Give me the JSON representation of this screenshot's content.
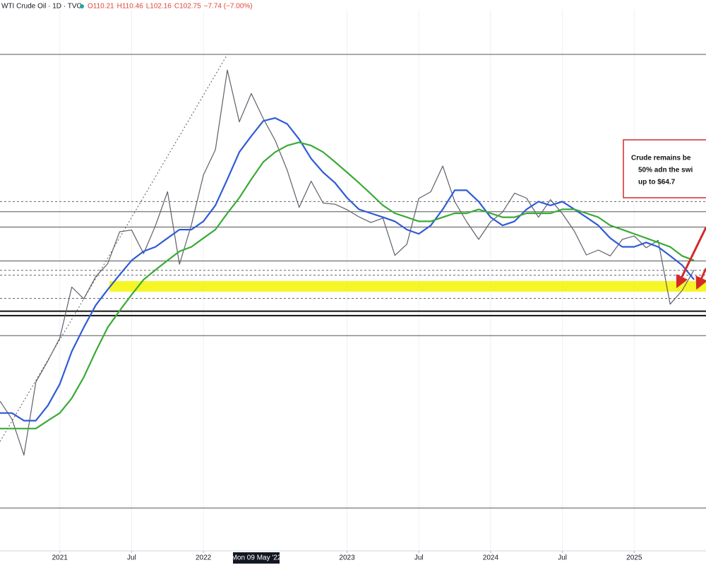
{
  "chart_data": {
    "type": "line",
    "title": "WTI Crude Oil · 1D · TVC",
    "ohlc": [
      "O110.21",
      "H110.46",
      "L102.16",
      "C102.75",
      "−7.74 (−7.00%)"
    ],
    "crosshair_label": "Mon 09 May '22",
    "log_scale": true,
    "ylim": [
      26.3,
      155
    ],
    "xlim": [
      "2020-08",
      "2025-07"
    ],
    "xticks": [
      {
        "value": "2021-01",
        "label": "2021"
      },
      {
        "value": "2021-07",
        "label": "Jul"
      },
      {
        "value": "2022-01",
        "label": "2022"
      },
      {
        "value": "2023-01",
        "label": "2023"
      },
      {
        "value": "2023-07",
        "label": "Jul"
      },
      {
        "value": "2024-01",
        "label": "2024"
      },
      {
        "value": "2024-07",
        "label": "Jul"
      },
      {
        "value": "2025-01",
        "label": "2025"
      }
    ],
    "grid": true,
    "x": [
      "2020-08",
      "2020-09",
      "2020-10",
      "2020-11",
      "2020-12",
      "2021-01",
      "2021-02",
      "2021-03",
      "2021-04",
      "2021-05",
      "2021-06",
      "2021-07",
      "2021-08",
      "2021-09",
      "2021-10",
      "2021-11",
      "2021-12",
      "2022-01",
      "2022-02",
      "2022-03",
      "2022-04",
      "2022-05",
      "2022-06",
      "2022-07",
      "2022-08",
      "2022-09",
      "2022-10",
      "2022-11",
      "2022-12",
      "2023-01",
      "2023-02",
      "2023-03",
      "2023-04",
      "2023-05",
      "2023-06",
      "2023-07",
      "2023-08",
      "2023-09",
      "2023-10",
      "2023-11",
      "2023-12",
      "2024-01",
      "2024-02",
      "2024-03",
      "2024-04",
      "2024-05",
      "2024-06",
      "2024-07",
      "2024-08",
      "2024-09",
      "2024-10",
      "2024-11",
      "2024-12",
      "2025-01",
      "2025-02",
      "2025-03",
      "2025-04",
      "2025-05",
      "2025-06"
    ],
    "series": [
      {
        "color": "#5d606b",
        "width": 1.2,
        "values": [
          42.6,
          40.2,
          35.8,
          45.3,
          48.5,
          52.2,
          61.5,
          59.2,
          63.6,
          66.3,
          73.5,
          73.9,
          68.5,
          75.0,
          83.6,
          66.2,
          75.2,
          88.2,
          95.7,
          123.7,
          104.7,
          114.7,
          105.8,
          98.6,
          89.6,
          79.5,
          86.5,
          80.6,
          80.3,
          78.9,
          77.1,
          75.7,
          76.8,
          68.1,
          70.6,
          81.8,
          83.6,
          90.8,
          81.0,
          75.9,
          71.7,
          75.9,
          78.3,
          83.2,
          81.9,
          77.0,
          81.5,
          77.9,
          73.6,
          68.2,
          69.3,
          68.0,
          71.7,
          72.5,
          69.8,
          71.5,
          58.2,
          60.8,
          65.0
        ]
      },
      {
        "color": "#2f5bd6",
        "width": 2.2,
        "values": [
          41,
          41,
          40,
          40,
          42,
          45,
          50,
          54,
          58,
          61,
          64,
          67,
          69,
          70,
          72,
          74,
          74,
          76,
          80,
          87,
          95,
          100,
          105,
          106,
          104,
          99,
          93,
          89,
          86,
          82,
          79,
          78,
          77,
          76,
          74,
          73,
          75,
          79,
          84,
          84,
          81,
          77,
          75,
          76,
          79,
          81,
          80,
          81,
          79,
          77,
          75,
          72,
          70,
          70,
          71,
          70,
          68,
          66,
          63
        ]
      },
      {
        "color": "#3aaa35",
        "width": 2.2,
        "values": [
          39,
          39,
          39,
          39,
          40,
          41,
          43,
          46,
          50,
          54,
          57,
          60,
          63,
          65,
          67,
          69,
          70,
          72,
          74,
          78,
          82,
          87,
          92,
          95,
          97,
          98,
          97,
          95,
          92,
          89,
          86,
          83,
          80,
          78,
          77,
          76,
          76,
          77,
          78,
          78,
          79,
          78,
          77,
          77,
          78,
          78,
          78,
          79,
          79,
          78,
          77,
          75,
          74,
          73,
          72,
          71,
          70,
          68,
          67
        ]
      }
    ],
    "band": {
      "values": [
        60.6,
        62.7
      ],
      "color": "#f4f400"
    },
    "levels": [
      {
        "value": 130.1,
        "style": "solid"
      },
      {
        "value": 81.0,
        "style": "dashed"
      },
      {
        "value": 78.4,
        "style": "solid"
      },
      {
        "value": 74.6,
        "style": "solid"
      },
      {
        "value": 66.9,
        "style": "solid"
      },
      {
        "value": 64.9,
        "style": "dashed"
      },
      {
        "value": 63.9,
        "style": "dashed"
      },
      {
        "value": 59.3,
        "style": "dashed"
      },
      {
        "value": 56.9,
        "style": "thick"
      },
      {
        "value": 56.1,
        "style": "thick"
      },
      {
        "value": 52.6,
        "style": "solid"
      },
      {
        "value": 30.2,
        "style": "solid"
      }
    ],
    "trendline": {
      "x": [
        "2020-08",
        "2022-03"
      ],
      "values": [
        37.4,
        130.1
      ]
    },
    "annotation": {
      "lines": [
        "Crude remains be",
        "50% adn the swi",
        "up to $64.7"
      ],
      "color": "#d42a2a"
    }
  }
}
